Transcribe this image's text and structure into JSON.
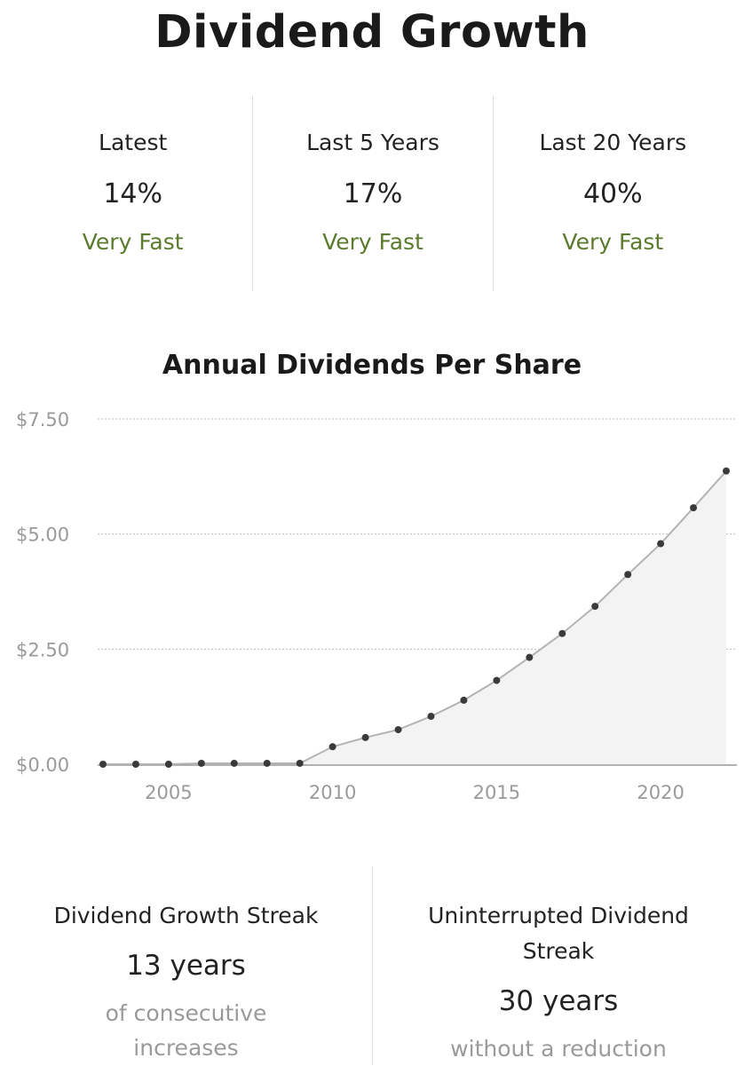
{
  "header": {
    "title": "Dividend Growth"
  },
  "growth_stats": [
    {
      "label": "Latest",
      "value": "14%",
      "rating": "Very Fast"
    },
    {
      "label": "Last 5 Years",
      "value": "17%",
      "rating": "Very Fast"
    },
    {
      "label": "Last 20 Years",
      "value": "40%",
      "rating": "Very Fast"
    }
  ],
  "streaks": [
    {
      "label": "Dividend Growth Streak",
      "value": "13 years",
      "sub": "of consecutive increases"
    },
    {
      "label": "Uninterrupted Dividend Streak",
      "value": "30 years",
      "sub": "without a reduction"
    }
  ],
  "colors": {
    "rating": "#5a7a2c",
    "line": "#b3b3b3",
    "area": "#f3f3f3",
    "point": "#3a3a3a",
    "grid": "#bbbbbb",
    "tick_label": "#9a9a9a"
  },
  "chart_data": {
    "type": "area",
    "title": "Annual Dividends Per Share",
    "xlabel": "",
    "ylabel": "",
    "x": [
      2003,
      2004,
      2005,
      2006,
      2007,
      2008,
      2009,
      2010,
      2011,
      2012,
      2013,
      2014,
      2015,
      2016,
      2017,
      2018,
      2019,
      2020,
      2021,
      2022
    ],
    "series": [
      {
        "values": [
          0.0,
          0.0,
          0.0,
          0.02,
          0.02,
          0.02,
          0.02,
          0.38,
          0.58,
          0.75,
          1.04,
          1.39,
          1.82,
          2.32,
          2.84,
          3.43,
          4.12,
          4.79,
          5.57,
          6.37
        ]
      }
    ],
    "xticks": [
      2005,
      2010,
      2015,
      2020
    ],
    "xtick_labels": [
      "2005",
      "2010",
      "2015",
      "2020"
    ],
    "yticks": [
      0,
      2.5,
      5,
      7.5
    ],
    "ytick_labels": [
      "$0.00",
      "$2.50",
      "$5.00",
      "$7.50"
    ],
    "xlim": [
      2003,
      2022
    ],
    "ylim": [
      0,
      7.5
    ],
    "grid": "horizontal-dotted",
    "legend": "none"
  }
}
